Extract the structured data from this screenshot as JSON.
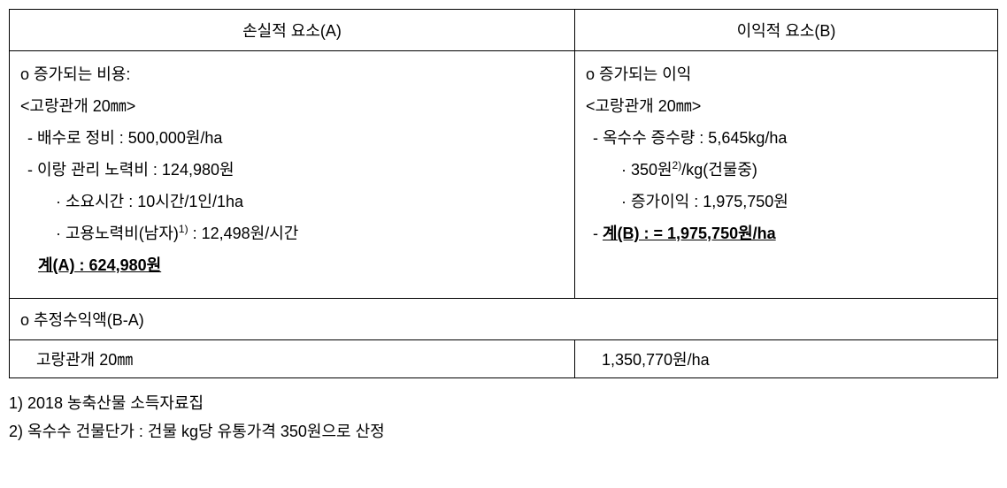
{
  "table": {
    "header_a": "손실적 요소(A)",
    "header_b": "이익적 요소(B)",
    "col_a": {
      "title": "o 증가되는 비용:",
      "subtitle": "<고랑관개 20㎜>",
      "item1": "- 배수로 정비 : 500,000원/ha",
      "item2": "- 이랑 관리 노력비 : 124,980원",
      "item2_sub1": "· 소요시간 : 10시간/1인/1ha",
      "item2_sub2_pre": "· 고용노력비(남자)",
      "item2_sub2_sup": "1)",
      "item2_sub2_post": "  : 12,498원/시간",
      "total": "계(A) : 624,980원"
    },
    "col_b": {
      "title": "o 증가되는 이익",
      "subtitle": " <고랑관개 20㎜>",
      "item1": " - 옥수수 증수량 : 5,645kg/ha",
      "item1_sub1_pre": "· 350원",
      "item1_sub1_sup": "2)",
      "item1_sub1_post": "/kg(건물중)",
      "item1_sub2": "· 증가이익 : 1,975,750원",
      "total_pre": " - ",
      "total": "계(B) : = 1,975,750원/ha"
    },
    "summary_label": "o   추정수익액(B-A)",
    "result_label": "고랑관개 20㎜",
    "result_value": "1,350,770원/ha"
  },
  "footnotes": {
    "note1": "1) 2018 농축산물 소득자료집",
    "note2": "2) 옥수수 건물단가 : 건물 kg당 유통가격 350원으로 산정"
  }
}
